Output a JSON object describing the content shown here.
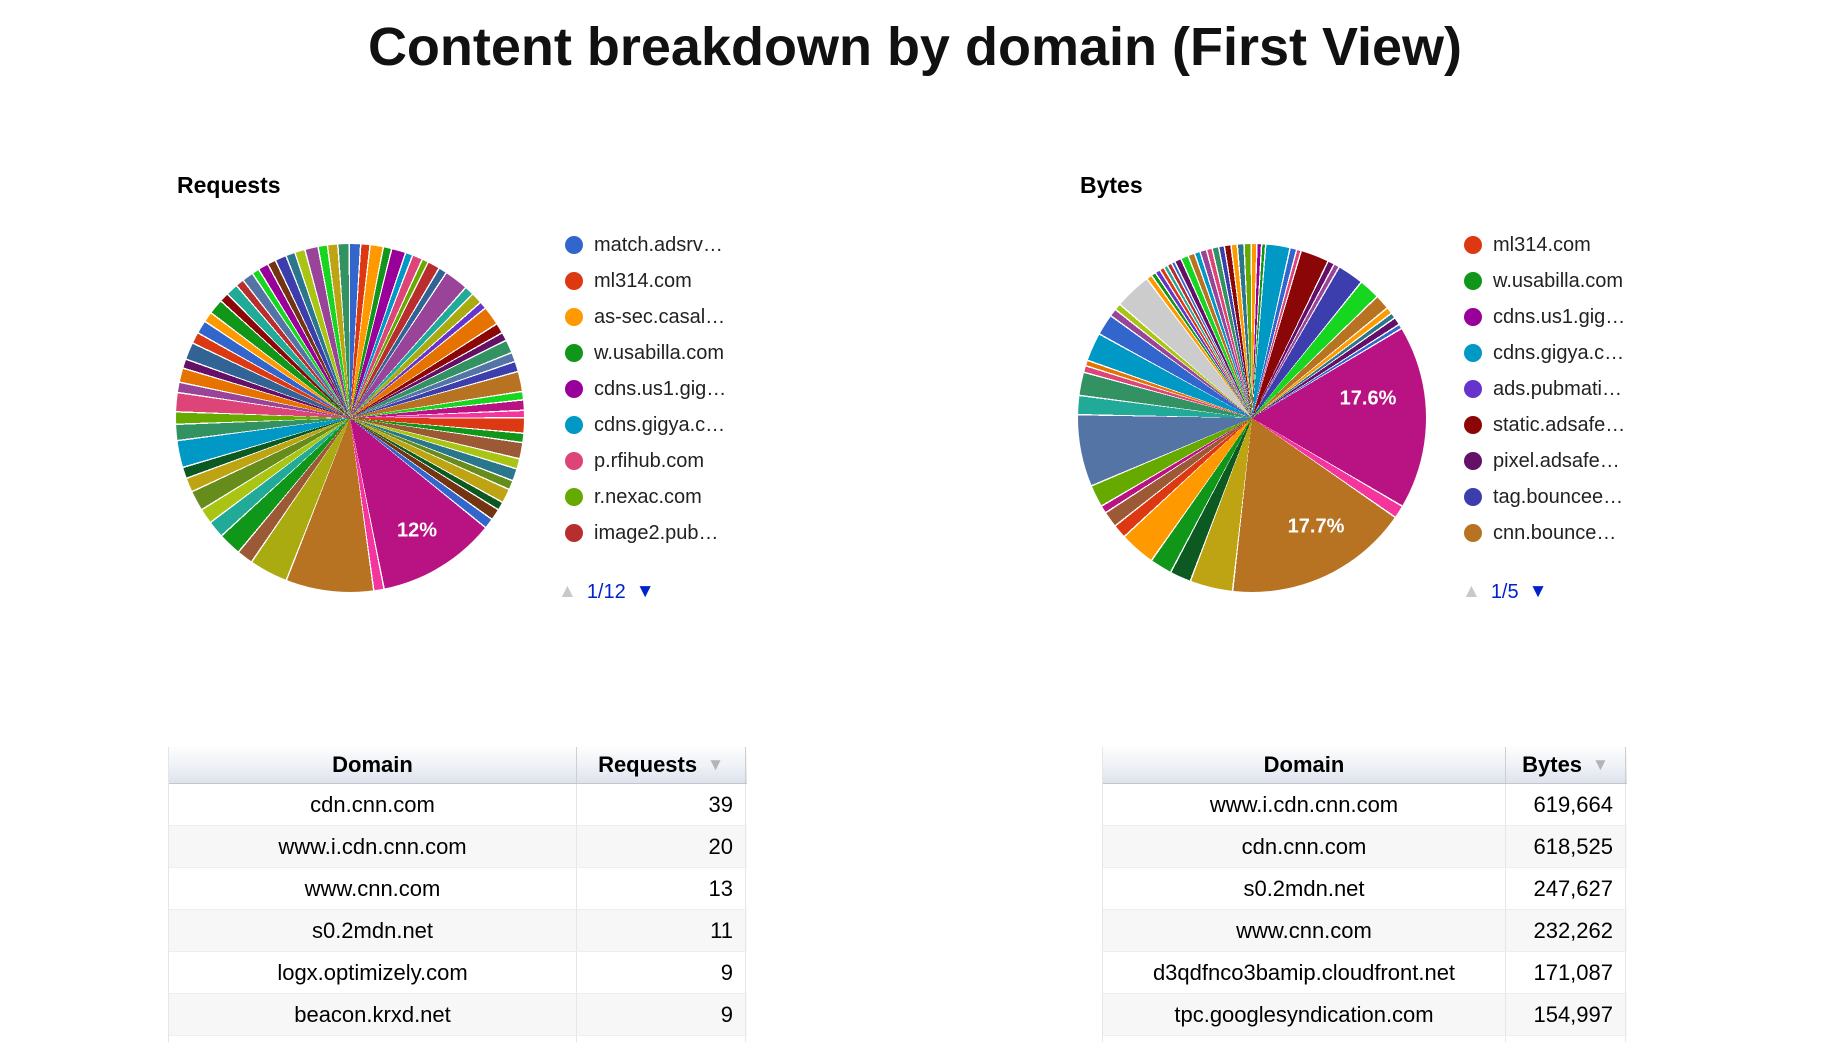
{
  "page": {
    "title": "Content breakdown by domain (First View)"
  },
  "colors": {
    "pager_active_blue": "#0022CC",
    "pager_disabled_gray": "#c9c9c9",
    "table_header_border": "#c6c6c6",
    "table_stripe": "#f7f7f7"
  },
  "chart_data": [
    {
      "type": "pie",
      "title": "Requests",
      "legend": {
        "page": "1/12",
        "entries": [
          {
            "label": "match.adsrv…",
            "color": "#3366CC"
          },
          {
            "label": "ml314.com",
            "color": "#DC3912"
          },
          {
            "label": "as-sec.casal…",
            "color": "#FF9900"
          },
          {
            "label": "w.usabilla.com",
            "color": "#109618"
          },
          {
            "label": "cdns.us1.gig…",
            "color": "#990099"
          },
          {
            "label": "cdns.gigya.c…",
            "color": "#0099C6"
          },
          {
            "label": "p.rfihub.com",
            "color": "#DD4477"
          },
          {
            "label": "r.nexac.com",
            "color": "#66AA00"
          },
          {
            "label": "image2.pub…",
            "color": "#B82E2E"
          }
        ]
      },
      "slice_labels": [
        {
          "text": "12%",
          "value": 12
        }
      ],
      "slices": [
        [
          1.0,
          "#3366CC"
        ],
        [
          0.8,
          "#DC3912"
        ],
        [
          1.2,
          "#FF9900"
        ],
        [
          0.7,
          "#109618"
        ],
        [
          1.3,
          "#990099"
        ],
        [
          0.6,
          "#0099C6"
        ],
        [
          0.9,
          "#DD4477"
        ],
        [
          0.5,
          "#66AA00"
        ],
        [
          1.1,
          "#B82E2E"
        ],
        [
          0.7,
          "#316395"
        ],
        [
          2.3,
          "#994499"
        ],
        [
          0.8,
          "#22AA99"
        ],
        [
          1.0,
          "#AAAA11"
        ],
        [
          0.6,
          "#6633CC"
        ],
        [
          1.8,
          "#E67300"
        ],
        [
          0.9,
          "#8B0707"
        ],
        [
          0.7,
          "#651067"
        ],
        [
          1.2,
          "#329262"
        ],
        [
          0.8,
          "#5574A6"
        ],
        [
          0.9,
          "#3B3EAC"
        ],
        [
          1.9,
          "#B77322"
        ],
        [
          0.7,
          "#16D620"
        ],
        [
          0.9,
          "#B91383"
        ],
        [
          0.6,
          "#F4359E"
        ],
        [
          1.4,
          "#DC3912"
        ],
        [
          0.8,
          "#109618"
        ],
        [
          1.5,
          "#9C5935"
        ],
        [
          0.9,
          "#A9C413"
        ],
        [
          1.1,
          "#2A778D"
        ],
        [
          0.8,
          "#668D1C"
        ],
        [
          1.3,
          "#BEA413"
        ],
        [
          0.7,
          "#0C5922"
        ],
        [
          1.0,
          "#743411"
        ],
        [
          0.9,
          "#3366CC"
        ],
        [
          12.0,
          "#B91383"
        ],
        [
          0.9,
          "#F4359E"
        ],
        [
          8.8,
          "#B77322"
        ],
        [
          3.8,
          "#AAAA11"
        ],
        [
          1.5,
          "#9C5935"
        ],
        [
          2.2,
          "#109618"
        ],
        [
          1.6,
          "#22AA99"
        ],
        [
          1.4,
          "#A9C413"
        ],
        [
          1.9,
          "#668D1C"
        ],
        [
          1.3,
          "#BEA413"
        ],
        [
          1.0,
          "#0C5922"
        ],
        [
          2.6,
          "#0099C6"
        ],
        [
          1.5,
          "#329262"
        ],
        [
          1.1,
          "#66AA00"
        ],
        [
          1.8,
          "#DD4477"
        ],
        [
          0.9,
          "#994499"
        ],
        [
          1.3,
          "#E67300"
        ],
        [
          0.8,
          "#651067"
        ],
        [
          1.6,
          "#316395"
        ],
        [
          1.0,
          "#DC3912"
        ],
        [
          1.2,
          "#3366CC"
        ],
        [
          0.9,
          "#FF9900"
        ],
        [
          1.4,
          "#109618"
        ],
        [
          0.8,
          "#8B0707"
        ],
        [
          1.1,
          "#22AA99"
        ],
        [
          0.7,
          "#B82E2E"
        ],
        [
          1.0,
          "#5574A6"
        ],
        [
          0.6,
          "#16D620"
        ],
        [
          0.9,
          "#990099"
        ],
        [
          0.7,
          "#743411"
        ],
        [
          1.0,
          "#3B3EAC"
        ],
        [
          0.8,
          "#2A778D"
        ],
        [
          0.9,
          "#A9C413"
        ],
        [
          1.2,
          "#994499"
        ],
        [
          0.8,
          "#16D620"
        ],
        [
          0.9,
          "#BEA413"
        ],
        [
          1.0,
          "#329262"
        ]
      ]
    },
    {
      "type": "pie",
      "title": "Bytes",
      "legend": {
        "page": "1/5",
        "entries": [
          {
            "label": "ml314.com",
            "color": "#DC3912"
          },
          {
            "label": "w.usabilla.com",
            "color": "#109618"
          },
          {
            "label": "cdns.us1.gig…",
            "color": "#990099"
          },
          {
            "label": "cdns.gigya.c…",
            "color": "#0099C6"
          },
          {
            "label": "ads.pubmati…",
            "color": "#6633CC"
          },
          {
            "label": "static.adsafe…",
            "color": "#8B0707"
          },
          {
            "label": "pixel.adsafe…",
            "color": "#651067"
          },
          {
            "label": "tag.bouncee…",
            "color": "#3B3EAC"
          },
          {
            "label": "cnn.bounce…",
            "color": "#B77322"
          }
        ]
      },
      "slice_labels": [
        {
          "text": "17.6%",
          "value": 17.6
        },
        {
          "text": "17.7%",
          "value": 17.7
        }
      ],
      "slices": [
        [
          0.4,
          "#FF9900"
        ],
        [
          0.3,
          "#990099"
        ],
        [
          0.25,
          "#109618"
        ],
        [
          2.2,
          "#0099C6"
        ],
        [
          0.5,
          "#3366CC"
        ],
        [
          0.3,
          "#DD4477"
        ],
        [
          2.6,
          "#8B0707"
        ],
        [
          0.5,
          "#651067"
        ],
        [
          0.4,
          "#994499"
        ],
        [
          2.4,
          "#3B3EAC"
        ],
        [
          1.9,
          "#16D620"
        ],
        [
          1.3,
          "#B77322"
        ],
        [
          0.5,
          "#FF9900"
        ],
        [
          0.4,
          "#2A778D"
        ],
        [
          0.6,
          "#651067"
        ],
        [
          0.3,
          "#3366CC"
        ],
        [
          17.6,
          "#B91383"
        ],
        [
          1.1,
          "#F4359E"
        ],
        [
          17.7,
          "#B77322"
        ],
        [
          4.0,
          "#BEA413"
        ],
        [
          1.9,
          "#0C5922"
        ],
        [
          2.0,
          "#109618"
        ],
        [
          3.3,
          "#FF9900"
        ],
        [
          1.2,
          "#DC3912"
        ],
        [
          1.4,
          "#9C5935"
        ],
        [
          0.6,
          "#B91383"
        ],
        [
          2.0,
          "#66AA00"
        ],
        [
          6.8,
          "#5574A6"
        ],
        [
          1.7,
          "#22AA99"
        ],
        [
          2.1,
          "#329262"
        ],
        [
          0.5,
          "#DD4477"
        ],
        [
          0.4,
          "#E67300"
        ],
        [
          2.6,
          "#0099C6"
        ],
        [
          1.9,
          "#3366CC"
        ],
        [
          0.6,
          "#994499"
        ],
        [
          0.5,
          "#A9C413"
        ],
        [
          3.4,
          "#CCCCCC"
        ],
        [
          0.4,
          "#FF9900"
        ],
        [
          0.3,
          "#109618"
        ],
        [
          0.35,
          "#6633CC"
        ],
        [
          0.3,
          "#DC3912"
        ],
        [
          0.25,
          "#22AA99"
        ],
        [
          0.3,
          "#B82E2E"
        ],
        [
          0.2,
          "#3366CC"
        ],
        [
          0.5,
          "#651067"
        ],
        [
          0.6,
          "#16D620"
        ],
        [
          0.5,
          "#B77322"
        ],
        [
          0.4,
          "#0099C6"
        ],
        [
          0.5,
          "#994499"
        ],
        [
          0.4,
          "#DD4477"
        ],
        [
          0.5,
          "#329262"
        ],
        [
          0.4,
          "#3B3EAC"
        ],
        [
          0.5,
          "#8B0707"
        ],
        [
          0.45,
          "#FF9900"
        ],
        [
          0.5,
          "#2A778D"
        ],
        [
          0.55,
          "#66AA00"
        ]
      ]
    },
    {
      "type": "table",
      "title": "Requests by domain",
      "columns": [
        "Domain",
        "Requests"
      ],
      "sorted_column": "Requests",
      "sort_direction": "desc",
      "rows": [
        [
          "cdn.cnn.com",
          "39"
        ],
        [
          "www.i.cdn.cnn.com",
          "20"
        ],
        [
          "www.cnn.com",
          "13"
        ],
        [
          "s0.2mdn.net",
          "11"
        ],
        [
          "logx.optimizely.com",
          "9"
        ],
        [
          "beacon.krxd.net",
          "9"
        ]
      ]
    },
    {
      "type": "table",
      "title": "Bytes by domain",
      "columns": [
        "Domain",
        "Bytes"
      ],
      "sorted_column": "Bytes",
      "sort_direction": "desc",
      "rows": [
        [
          "www.i.cdn.cnn.com",
          "619,664"
        ],
        [
          "cdn.cnn.com",
          "618,525"
        ],
        [
          "s0.2mdn.net",
          "247,627"
        ],
        [
          "www.cnn.com",
          "232,262"
        ],
        [
          "d3qdfnco3bamip.cloudfront.net",
          "171,087"
        ],
        [
          "tpc.googlesyndication.com",
          "154,997"
        ]
      ]
    }
  ]
}
